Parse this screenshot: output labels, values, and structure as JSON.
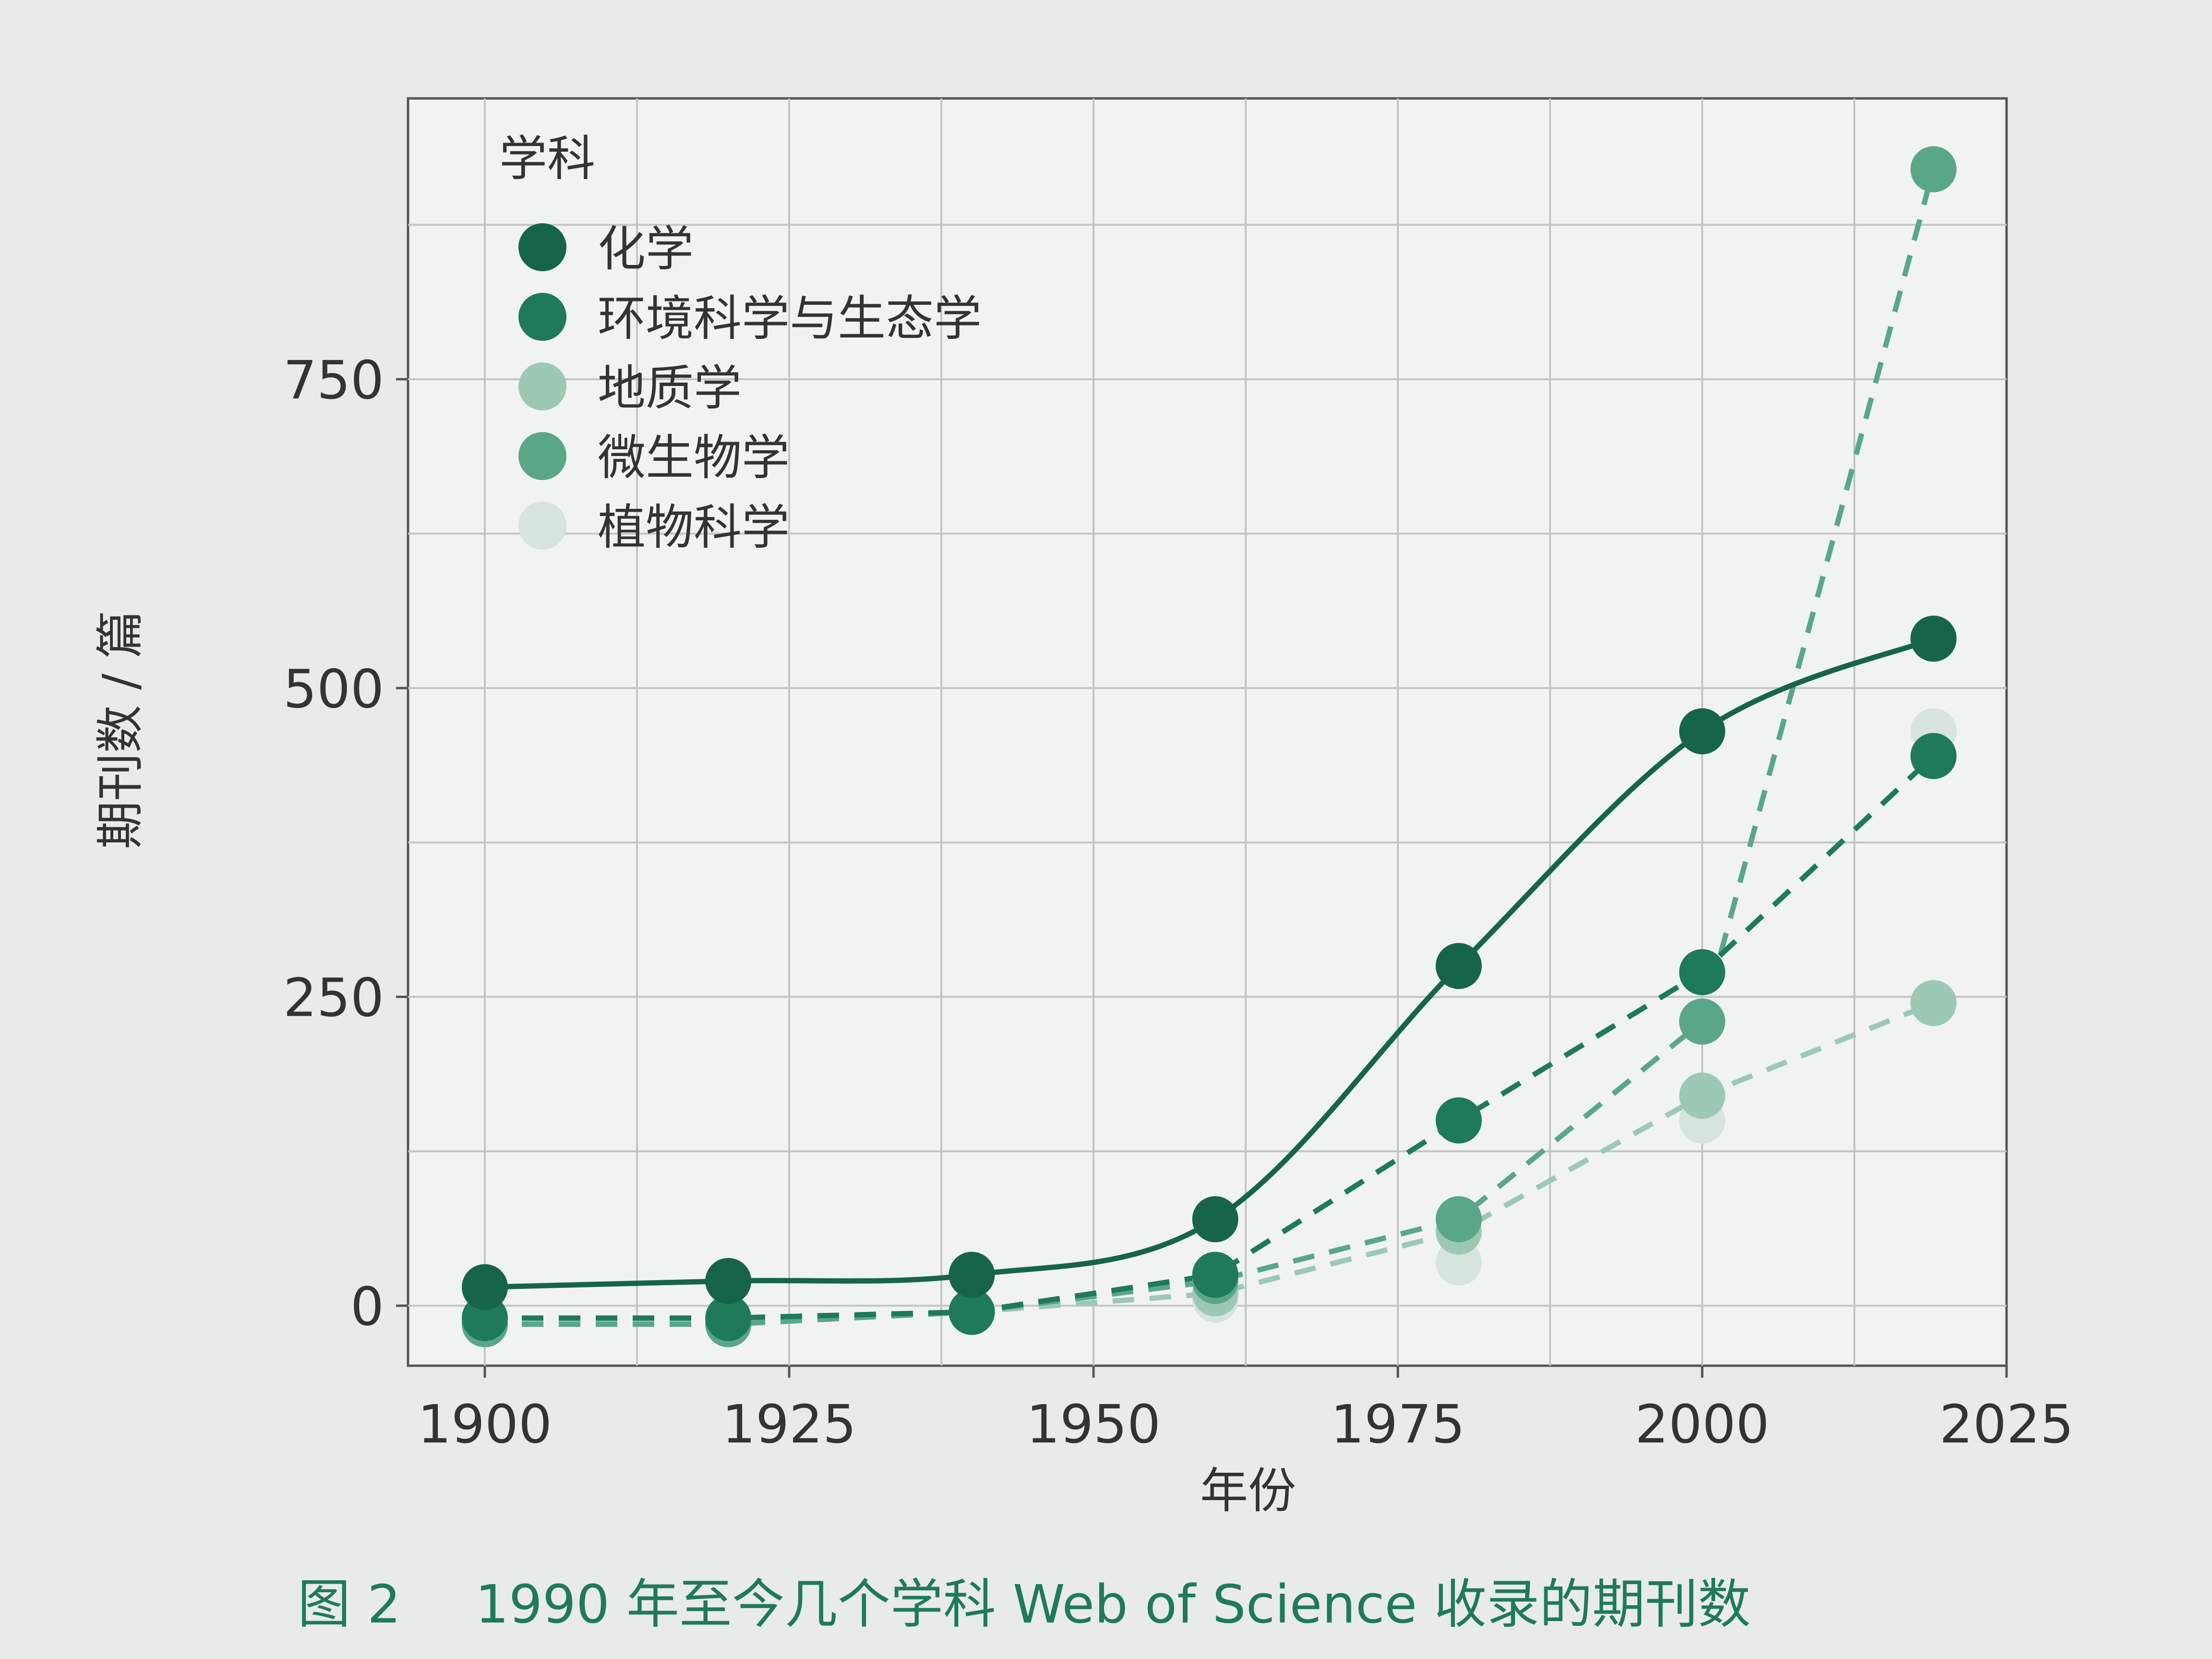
{
  "chart_data": {
    "type": "line",
    "title": "",
    "xlabel": "年份",
    "ylabel": "期刊数 / 篇",
    "xlim": [
      1894,
      2025
    ],
    "ylim": [
      -20,
      980
    ],
    "xticks": [
      1900,
      1925,
      1950,
      1975,
      2000,
      2025
    ],
    "yticks": [
      0,
      250,
      500,
      750
    ],
    "grid": true,
    "legend": {
      "title": "学科",
      "position": "top-left"
    },
    "series": [
      {
        "name": "化学",
        "color": "#16654a",
        "line": "solid",
        "x": [
          1900,
          1920,
          1940,
          1960,
          1980,
          2000,
          2019
        ],
        "y": [
          15,
          20,
          25,
          70,
          275,
          465,
          540
        ]
      },
      {
        "name": "环境科学与生态学",
        "color": "#1f7a58",
        "line": "dashed",
        "x": [
          1900,
          1920,
          1940,
          1960,
          1980,
          2000,
          2019
        ],
        "y": [
          -10,
          -10,
          -5,
          25,
          150,
          270,
          445
        ]
      },
      {
        "name": "地质学",
        "color": "#9cc9b4",
        "line": "dashed",
        "x": [
          1900,
          1920,
          1940,
          1960,
          1980,
          2000,
          2019
        ],
        "y": [
          -15,
          -12,
          -5,
          10,
          60,
          170,
          245
        ]
      },
      {
        "name": "微生物学",
        "color": "#5aa788",
        "line": "dashed",
        "x": [
          1900,
          1920,
          1940,
          1960,
          1980,
          2000,
          2019
        ],
        "y": [
          -15,
          -15,
          -5,
          20,
          70,
          230,
          920
        ]
      },
      {
        "name": "植物科学",
        "color": "#d6e4dc",
        "line": "none",
        "x": [
          1900,
          1920,
          1940,
          1960,
          1980,
          2000,
          2019
        ],
        "y": [
          -15,
          -12,
          -5,
          5,
          35,
          150,
          465
        ]
      }
    ]
  },
  "caption": {
    "label": "图 2",
    "text": "1990 年至今几个学科 Web of Science 收录的期刊数"
  }
}
